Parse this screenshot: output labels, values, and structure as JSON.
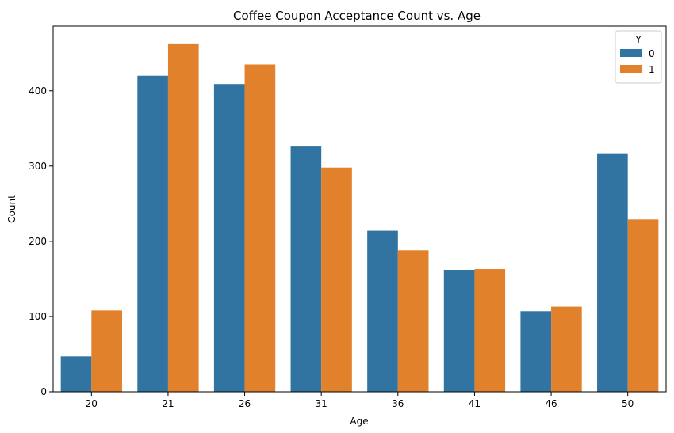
{
  "chart_data": {
    "type": "bar",
    "title": "Coffee Coupon Acceptance Count vs. Age",
    "xlabel": "Age",
    "ylabel": "Count",
    "categories": [
      "20",
      "21",
      "26",
      "31",
      "36",
      "41",
      "46",
      "50"
    ],
    "series": [
      {
        "name": "0",
        "color": "#3274a1",
        "values": [
          47,
          420,
          409,
          326,
          214,
          162,
          107,
          317
        ]
      },
      {
        "name": "1",
        "color": "#e1812c",
        "values": [
          108,
          463,
          435,
          298,
          188,
          163,
          113,
          229
        ]
      }
    ],
    "ylim": [
      0,
      486
    ],
    "yticks": [
      0,
      100,
      200,
      300,
      400
    ],
    "legend": {
      "title": "Y",
      "position": "top-right"
    },
    "grid": false
  }
}
